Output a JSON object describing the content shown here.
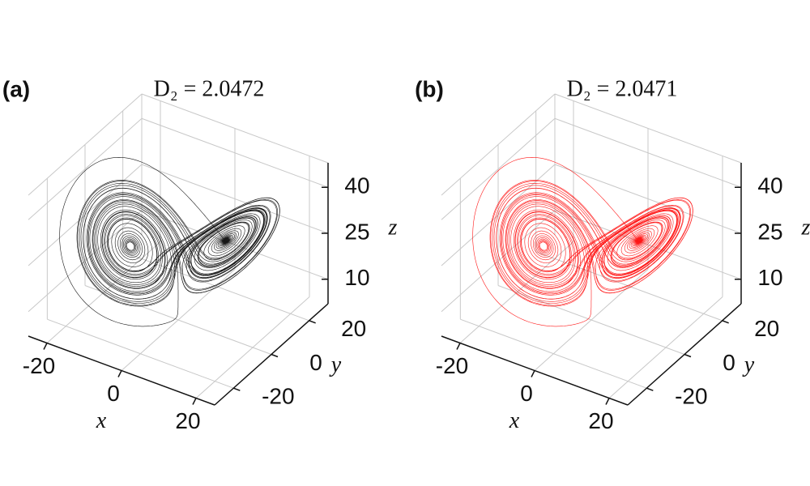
{
  "chart_data": [
    {
      "type": "line3d",
      "panel_label": "(a)",
      "title": "D₂ = 2.0472",
      "title_color": "#222222",
      "color": "#000000",
      "xlabel": "x",
      "ylabel": "y",
      "zlabel": "z",
      "xlim": [
        -25,
        25
      ],
      "ylim": [
        -30,
        30
      ],
      "zlim": [
        2,
        48
      ],
      "xticks": [
        -20,
        0,
        20
      ],
      "yticks": [
        -20,
        0,
        20
      ],
      "zticks": [
        10,
        25,
        40
      ],
      "grid": true
    },
    {
      "type": "line3d",
      "panel_label": "(b)",
      "title": "D₂ = 2.0471",
      "title_color": "#e8141c",
      "color": "#ff0000",
      "xlabel": "x",
      "ylabel": "y",
      "zlabel": "z",
      "xlim": [
        -25,
        25
      ],
      "ylim": [
        -30,
        30
      ],
      "zlim": [
        2,
        48
      ],
      "xticks": [
        -20,
        0,
        20
      ],
      "yticks": [
        -20,
        0,
        20
      ],
      "zticks": [
        10,
        25,
        40
      ],
      "grid": true
    }
  ]
}
